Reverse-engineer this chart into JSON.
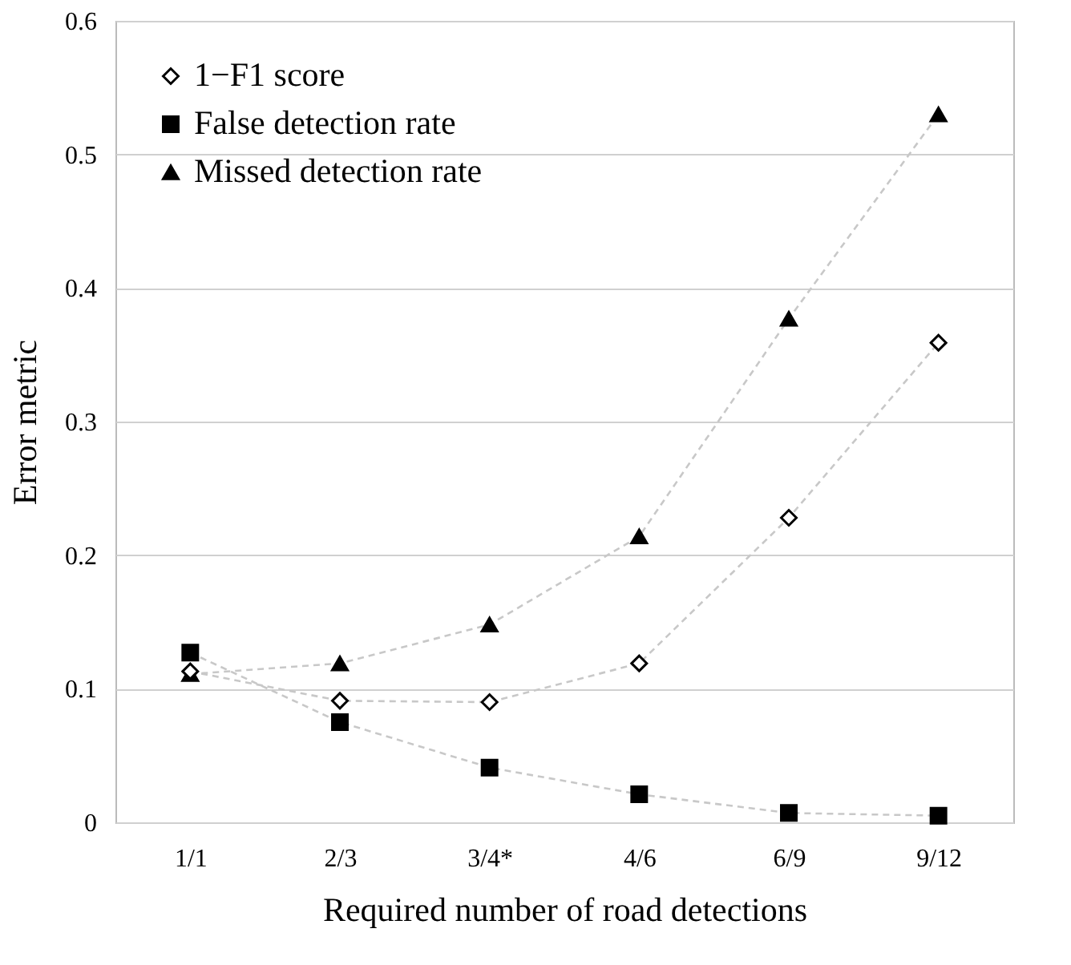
{
  "chart_data": {
    "type": "line",
    "xlabel": "Required number of road detections",
    "ylabel": "Error metric",
    "categories": [
      "1/1",
      "2/3",
      "3/4*",
      "4/6",
      "6/9",
      "9/12"
    ],
    "series": [
      {
        "name": "1−F1 score",
        "color": "#000000",
        "marker": "diamond",
        "values": [
          0.113,
          0.091,
          0.09,
          0.119,
          0.228,
          0.359
        ]
      },
      {
        "name": "False detection rate",
        "color": "#000000",
        "marker": "square",
        "values": [
          0.127,
          0.075,
          0.041,
          0.021,
          0.007,
          0.005
        ]
      },
      {
        "name": "Missed detection rate",
        "color": "#000000",
        "marker": "triangle",
        "values": [
          0.111,
          0.119,
          0.148,
          0.214,
          0.377,
          0.53
        ]
      }
    ],
    "ylim": [
      0,
      0.6
    ],
    "yticks": [
      {
        "value": 0,
        "label": "0"
      },
      0.1,
      0.2,
      0.3,
      0.4,
      0.5,
      0.6
    ],
    "grid": "y",
    "legend": "top left",
    "line_style": "dashed"
  }
}
